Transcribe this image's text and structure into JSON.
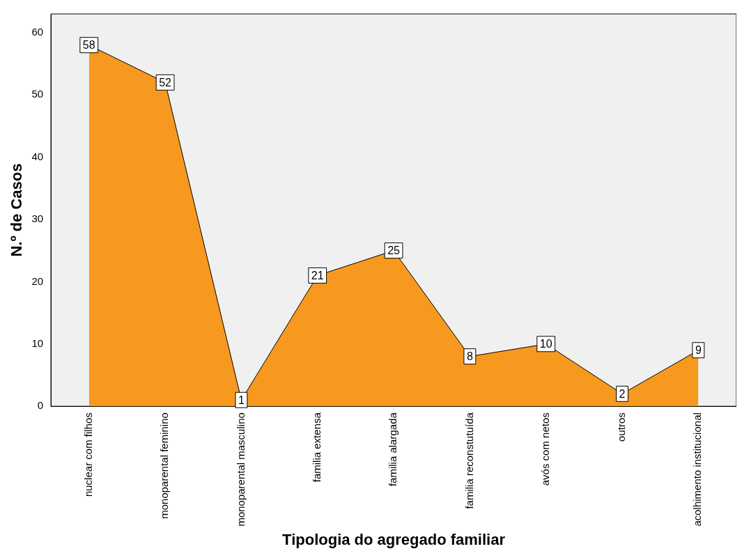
{
  "chart_data": {
    "type": "area",
    "xlabel": "Tipologia do agregado familiar",
    "ylabel": "N.º de Casos",
    "categories": [
      "nuclear com filhos",
      "monoparental feminino",
      "monoparental masculino",
      "familia extensa",
      "familia alargada",
      "familia reconstutuída",
      "avós com netos",
      "outros",
      "acolhimento institucional"
    ],
    "values": [
      58,
      52,
      1,
      21,
      25,
      8,
      10,
      2,
      9
    ],
    "color": "#f7991f",
    "ylim": [
      0,
      63
    ],
    "yticks": [
      0,
      10,
      20,
      30,
      40,
      50,
      60
    ],
    "grid": false,
    "legend": false,
    "data_labels": true
  }
}
